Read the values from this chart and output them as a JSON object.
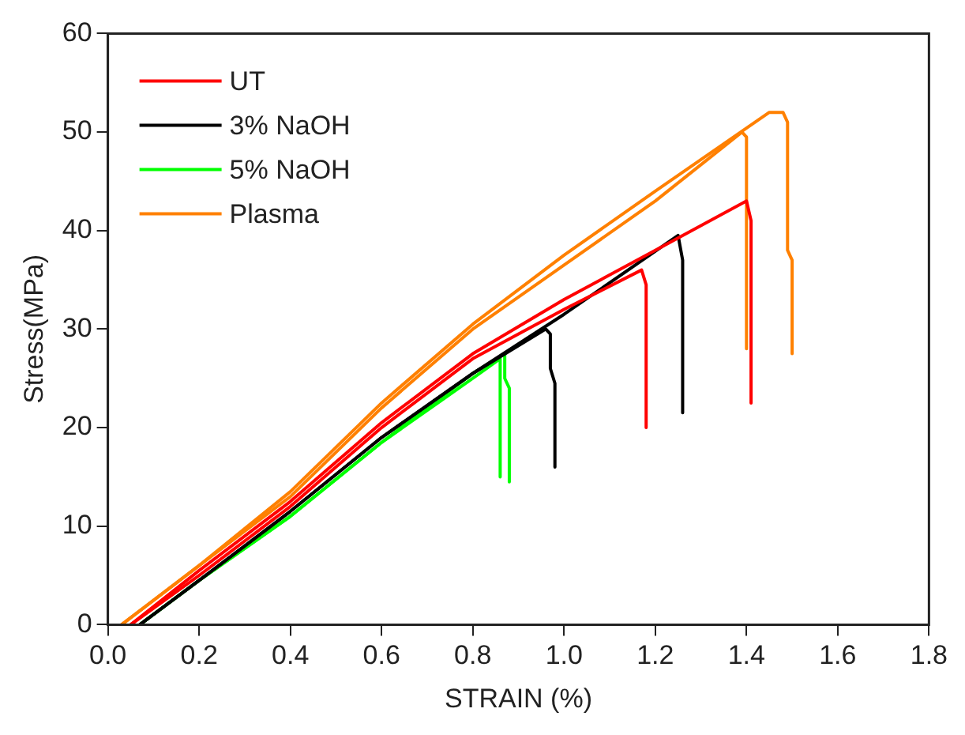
{
  "chart_data": {
    "type": "line",
    "xlabel": "STRAIN (%)",
    "ylabel": "Stress(MPa)",
    "xlim": [
      0,
      1.8
    ],
    "xticks": [
      {
        "value": 0,
        "label": "0.0"
      },
      0.2,
      0.4,
      0.6,
      0.8,
      {
        "value": 1,
        "label": "1.0"
      },
      1.2,
      1.4,
      1.6,
      1.8
    ],
    "ylim": [
      0,
      60
    ],
    "yticks": [
      0,
      10,
      20,
      30,
      40,
      50,
      60
    ],
    "grid": false,
    "legend": "top left",
    "marker": "none",
    "line_style": "solid",
    "series": [
      {
        "name": "UT",
        "color": "#ff0000",
        "x": [
          0.05,
          0.2,
          0.4,
          0.6,
          0.8,
          1.0,
          1.2,
          1.4,
          1.41,
          1.41
        ],
        "values": [
          0,
          5.5,
          12.5,
          20.5,
          27.5,
          33,
          38,
          43,
          41,
          22.5
        ]
      },
      {
        "color": "#ff0000",
        "x": [
          0.05,
          0.2,
          0.4,
          0.6,
          0.8,
          1.0,
          1.17,
          1.18,
          1.18
        ],
        "values": [
          0,
          5,
          12,
          20,
          27,
          32,
          36,
          34.5,
          20
        ]
      },
      {
        "name": "3% NaOH",
        "color": "#000000",
        "x": [
          0.07,
          0.2,
          0.4,
          0.6,
          0.8,
          1.0,
          1.25,
          1.26,
          1.26
        ],
        "values": [
          0,
          4.5,
          11.5,
          19,
          25.5,
          31.5,
          39.5,
          37,
          21.5
        ]
      },
      {
        "color": "#000000",
        "x": [
          0.07,
          0.2,
          0.4,
          0.6,
          0.8,
          0.96,
          0.97,
          0.97,
          0.98,
          0.98
        ],
        "values": [
          0,
          4.5,
          11.5,
          19,
          25.5,
          30,
          29.5,
          26,
          24.5,
          16
        ]
      },
      {
        "name": "5% NaOH",
        "color": "#00ff00",
        "x": [
          0.07,
          0.2,
          0.4,
          0.6,
          0.8,
          0.86,
          0.86
        ],
        "values": [
          0,
          4.5,
          11,
          18.5,
          25,
          27,
          15
        ]
      },
      {
        "color": "#00ff00",
        "x": [
          0.07,
          0.2,
          0.4,
          0.6,
          0.8,
          0.87,
          0.87,
          0.88,
          0.88
        ],
        "values": [
          0,
          4.5,
          11,
          18.5,
          25.5,
          27.5,
          25,
          24,
          14.5
        ]
      },
      {
        "name": "Plasma",
        "color": "#ff8000",
        "x": [
          0.03,
          0.2,
          0.4,
          0.6,
          0.8,
          1.0,
          1.2,
          1.39,
          1.4,
          1.4
        ],
        "values": [
          0,
          6,
          13,
          22,
          30,
          36.5,
          43,
          50,
          49.5,
          28
        ]
      },
      {
        "color": "#ff8000",
        "x": [
          0.03,
          0.2,
          0.4,
          0.6,
          0.8,
          1.0,
          1.2,
          1.45,
          1.48,
          1.49,
          1.49,
          1.5,
          1.5
        ],
        "values": [
          0,
          6,
          13.5,
          22.5,
          30.5,
          37.5,
          44,
          52,
          52,
          51,
          38,
          37,
          27.5
        ]
      }
    ]
  }
}
